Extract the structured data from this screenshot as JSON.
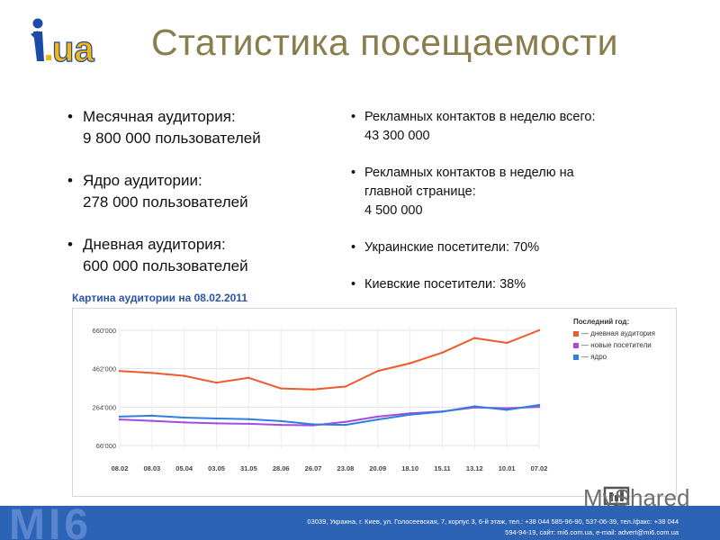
{
  "header": {
    "logo_text": "i.ua",
    "title": "Статистика посещаемости"
  },
  "left_list": [
    {
      "line1": "Месячная аудитория:",
      "line2": "9 800 000 пользователей"
    },
    {
      "line1": "Ядро аудитории:",
      "line2": "278 000 пользователей"
    },
    {
      "line1": "Дневная аудитория:",
      "line2": "600 000 пользователей"
    }
  ],
  "right_list": [
    {
      "line1": "Рекламных контактов в неделю всего:",
      "line2": "43 300 000",
      "line3": ""
    },
    {
      "line1": "Рекламных контактов в неделю на",
      "line2": "главной странице:",
      "line3": "4 500 000"
    },
    {
      "line1": "Украинские посетители: 70%",
      "line2": "",
      "line3": ""
    },
    {
      "line1": "Киевские посетители: 38%",
      "line2": "",
      "line3": ""
    }
  ],
  "chart_data": {
    "type": "line",
    "title": "Картина аудитории на 08.02.2011",
    "legend_title": "Последний год:",
    "legend_position": "top-right",
    "x": [
      "08.02",
      "08.03",
      "05.04",
      "03.05",
      "31.05",
      "28.06",
      "26.07",
      "23.08",
      "20.09",
      "18.10",
      "15.11",
      "13.12",
      "10.01",
      "07.02"
    ],
    "y_ticks": [
      "660'000",
      "462'000",
      "264'000",
      "66'000"
    ],
    "ylim": [
      66000,
      660000
    ],
    "series": [
      {
        "name": "— дневная аудитория",
        "color": "#f0592a",
        "values": [
          450000,
          440000,
          425000,
          390000,
          415000,
          360000,
          355000,
          370000,
          450000,
          490000,
          545000,
          620000,
          595000,
          660000
        ]
      },
      {
        "name": "— новые посетители",
        "color": "#a24ce0",
        "values": [
          200000,
          193000,
          185000,
          180000,
          178000,
          172000,
          170000,
          188000,
          215000,
          232000,
          242000,
          262000,
          258000,
          265000
        ]
      },
      {
        "name": "— ядро",
        "color": "#2f7fe0",
        "values": [
          215000,
          220000,
          210000,
          205000,
          202000,
          192000,
          175000,
          172000,
          200000,
          225000,
          240000,
          268000,
          250000,
          275000
        ]
      }
    ]
  },
  "footer": {
    "brand": "MI6",
    "address_line1": "03039, Украина, г. Киев, ул. Голосеевская, 7, корпус 3, 6-й этаж, тел.: +38 044 585-96-90, 537-06-39, тел./факс: +38 044",
    "address_line2": "594-94-19, сайт: mi6.com.ua, e-mail: advert@mi6.com.ua"
  },
  "watermark": {
    "text": "MyShared"
  }
}
